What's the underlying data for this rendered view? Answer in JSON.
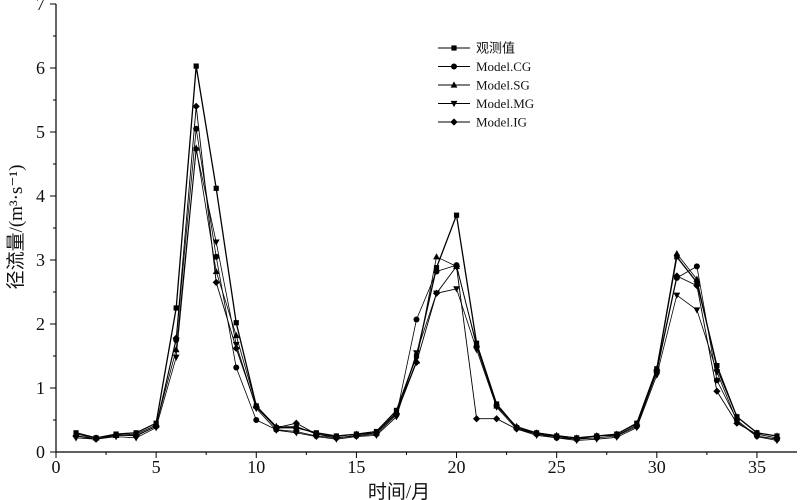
{
  "chart_data": {
    "type": "line",
    "title": "",
    "xlabel": "时间/月",
    "ylabel": "径流量/(m³·s⁻¹)",
    "xlim": [
      0,
      37
    ],
    "ylim": [
      0,
      7
    ],
    "xticks": [
      0,
      5,
      10,
      15,
      20,
      25,
      30,
      35
    ],
    "yticks": [
      0,
      1,
      2,
      3,
      4,
      5,
      6,
      7
    ],
    "grid": false,
    "legend_position": "top-right",
    "x": [
      1,
      2,
      3,
      4,
      5,
      6,
      7,
      8,
      9,
      10,
      11,
      12,
      13,
      14,
      15,
      16,
      17,
      18,
      19,
      20,
      21,
      22,
      23,
      24,
      25,
      26,
      27,
      28,
      29,
      30,
      31,
      32,
      33,
      34,
      35,
      36
    ],
    "series": [
      {
        "name": "观测值",
        "marker": "square",
        "values": [
          0.3,
          0.22,
          0.28,
          0.3,
          0.45,
          2.25,
          6.03,
          4.12,
          2.02,
          0.72,
          0.38,
          0.38,
          0.3,
          0.25,
          0.28,
          0.32,
          0.65,
          1.5,
          2.88,
          3.7,
          1.7,
          0.75,
          0.38,
          0.3,
          0.25,
          0.22,
          0.25,
          0.28,
          0.45,
          1.3,
          3.05,
          2.65,
          1.35,
          0.55,
          0.3,
          0.25
        ]
      },
      {
        "name": "Model.CG",
        "marker": "circle",
        "values": [
          0.25,
          0.22,
          0.27,
          0.25,
          0.4,
          1.75,
          5.05,
          3.05,
          1.32,
          0.5,
          0.35,
          0.32,
          0.25,
          0.22,
          0.25,
          0.28,
          0.58,
          2.07,
          2.82,
          2.92,
          1.65,
          0.72,
          0.38,
          0.28,
          0.22,
          0.2,
          0.22,
          0.25,
          0.4,
          1.25,
          2.72,
          2.9,
          1.12,
          0.5,
          0.25,
          0.2
        ]
      },
      {
        "name": "Model.SG",
        "marker": "triangle-up",
        "values": [
          0.28,
          0.22,
          0.26,
          0.28,
          0.42,
          1.6,
          4.75,
          2.82,
          1.82,
          0.72,
          0.4,
          0.4,
          0.28,
          0.24,
          0.28,
          0.3,
          0.62,
          1.42,
          3.05,
          2.9,
          1.68,
          0.72,
          0.4,
          0.3,
          0.26,
          0.22,
          0.25,
          0.28,
          0.44,
          1.3,
          3.1,
          2.7,
          1.3,
          0.55,
          0.3,
          0.25
        ]
      },
      {
        "name": "Model.MG",
        "marker": "triangle-down",
        "values": [
          0.22,
          0.2,
          0.24,
          0.22,
          0.38,
          1.48,
          4.72,
          3.28,
          1.68,
          0.68,
          0.34,
          0.3,
          0.24,
          0.2,
          0.24,
          0.26,
          0.55,
          1.55,
          2.48,
          2.55,
          1.6,
          0.7,
          0.36,
          0.26,
          0.22,
          0.18,
          0.2,
          0.23,
          0.38,
          1.2,
          2.45,
          2.22,
          1.25,
          0.48,
          0.24,
          0.18
        ]
      },
      {
        "name": "Model.IG",
        "marker": "diamond",
        "values": [
          0.25,
          0.2,
          0.26,
          0.26,
          0.4,
          1.78,
          5.4,
          2.65,
          1.62,
          0.7,
          0.38,
          0.45,
          0.28,
          0.22,
          0.26,
          0.3,
          0.6,
          1.4,
          2.48,
          2.9,
          0.52,
          0.52,
          0.36,
          0.28,
          0.24,
          0.2,
          0.25,
          0.26,
          0.42,
          1.28,
          2.75,
          2.6,
          0.95,
          0.45,
          0.28,
          0.22
        ]
      }
    ]
  }
}
